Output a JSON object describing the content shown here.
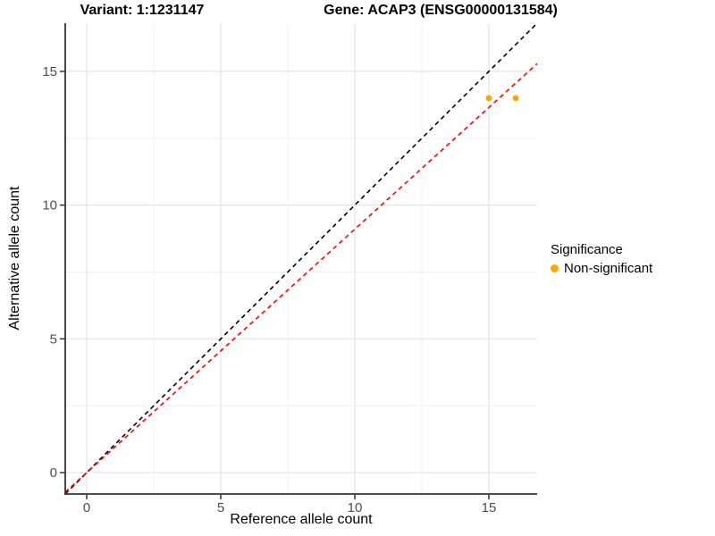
{
  "chart_data": {
    "type": "scatter",
    "title_left": "Variant: 1:1231147",
    "title_right": "Gene: ACAP3 (ENSG00000131584)",
    "xlabel": "Reference allele count",
    "ylabel": "Alternative allele count",
    "xlim": [
      -0.8,
      16.8
    ],
    "ylim": [
      -0.8,
      16.8
    ],
    "x_ticks": [
      0,
      5,
      10,
      15
    ],
    "y_ticks": [
      0,
      5,
      10,
      15
    ],
    "x_minor_ticks": [
      2.5,
      7.5,
      12.5
    ],
    "y_minor_ticks": [
      2.5,
      7.5,
      12.5
    ],
    "grid": true,
    "colors": {
      "point": "#FFA500",
      "identity_line": "#000000",
      "expected_line": "#FF0000",
      "axis": "#333333",
      "tick_text": "#4D4D4D",
      "grid_major": "#E3E3E3",
      "grid_minor": "#F0F0F0"
    },
    "points": [
      {
        "x": 15,
        "y": 14
      },
      {
        "x": 16,
        "y": 14
      }
    ],
    "lines": [
      {
        "name": "identity-line",
        "slope": 1.0,
        "intercept": 0,
        "color": "#000000",
        "dashed": true
      },
      {
        "name": "expected-line",
        "slope": 0.91,
        "intercept": 0,
        "color": "#FF0000",
        "dashed": true
      }
    ],
    "legend": {
      "title": "Significance",
      "position": "right",
      "items": [
        {
          "label": "Non-significant",
          "color": "#FFA500"
        }
      ]
    }
  }
}
